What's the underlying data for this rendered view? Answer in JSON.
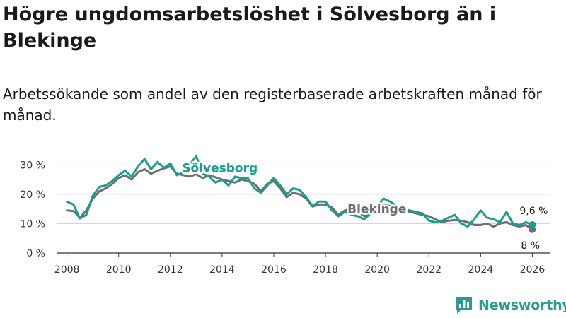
{
  "header": {
    "title": "Högre ungdomsarbetslöshet i Sölvesborg än i Blekinge",
    "subtitle": "Arbetssökande som andel av den registerbaserade arbetskraften månad för månad."
  },
  "brand": {
    "name": "Newsworthy"
  },
  "chart_data": {
    "type": "line",
    "title": "Högre ungdomsarbetslöshet i Sölvesborg än i Blekinge",
    "subtitle": "Arbetssökande som andel av den registerbaserade arbetskraften månad för månad.",
    "xlabel": "",
    "ylabel": "",
    "xlim": [
      2007.6,
      2026.7
    ],
    "ylim": [
      0,
      32
    ],
    "x_ticks": [
      2008,
      2010,
      2012,
      2014,
      2016,
      2018,
      2020,
      2022,
      2024,
      2026
    ],
    "x_tick_labels": [
      "2008",
      "2010",
      "2012",
      "2014",
      "2016",
      "2018",
      "2020",
      "2022",
      "2024",
      "2026"
    ],
    "y_ticks": [
      0,
      10,
      20,
      30
    ],
    "y_tick_labels": [
      "0 %",
      "10 %",
      "20 %",
      "30 %"
    ],
    "grid": true,
    "series": [
      {
        "name": "Blekinge",
        "color": "#6f6f73",
        "label": "Blekinge",
        "end_label": "8 %",
        "x": [
          2008.0,
          2008.25,
          2008.5,
          2008.75,
          2009.0,
          2009.25,
          2009.5,
          2009.75,
          2010.0,
          2010.25,
          2010.5,
          2010.75,
          2011.0,
          2011.25,
          2011.5,
          2011.75,
          2012.0,
          2012.25,
          2012.5,
          2012.75,
          2013.0,
          2013.25,
          2013.5,
          2013.75,
          2014.0,
          2014.25,
          2014.5,
          2014.75,
          2015.0,
          2015.25,
          2015.5,
          2015.75,
          2016.0,
          2016.25,
          2016.5,
          2016.75,
          2017.0,
          2017.25,
          2017.5,
          2017.75,
          2018.0,
          2018.25,
          2018.5,
          2018.75,
          2019.0,
          2019.25,
          2019.5,
          2019.75,
          2020.0,
          2020.25,
          2020.5,
          2020.75,
          2021.0,
          2021.25,
          2021.5,
          2021.75,
          2022.0,
          2022.25,
          2022.5,
          2022.75,
          2023.0,
          2023.25,
          2023.5,
          2023.75,
          2024.0,
          2024.25,
          2024.5,
          2024.75,
          2025.0,
          2025.25,
          2025.5,
          2025.75,
          2026.0
        ],
        "y": [
          14.5,
          14.3,
          12.0,
          14.5,
          18.5,
          21.0,
          22.0,
          23.5,
          25.5,
          26.5,
          25.0,
          27.5,
          28.5,
          27.0,
          28.0,
          28.8,
          29.5,
          27.0,
          26.5,
          26.0,
          26.8,
          25.5,
          26.5,
          25.8,
          25.0,
          24.5,
          24.0,
          25.0,
          24.5,
          23.5,
          21.0,
          23.5,
          24.5,
          22.0,
          19.0,
          20.5,
          20.0,
          18.5,
          15.8,
          16.5,
          16.5,
          15.5,
          13.0,
          14.5,
          15.0,
          14.0,
          12.5,
          13.5,
          15.0,
          16.5,
          16.0,
          15.5,
          15.0,
          14.0,
          13.5,
          13.0,
          12.5,
          11.5,
          10.5,
          11.0,
          11.2,
          11.0,
          10.5,
          9.5,
          9.5,
          10.0,
          9.0,
          10.0,
          10.5,
          9.5,
          9.0,
          9.5,
          8.0
        ]
      },
      {
        "name": "Sölvesborg",
        "color": "#1a9e8f",
        "label": "Sölvesborg",
        "end_label": "9,6 %",
        "x": [
          2008.0,
          2008.25,
          2008.5,
          2008.75,
          2009.0,
          2009.25,
          2009.5,
          2009.75,
          2010.0,
          2010.25,
          2010.5,
          2010.75,
          2011.0,
          2011.25,
          2011.5,
          2011.75,
          2012.0,
          2012.25,
          2012.5,
          2012.75,
          2013.0,
          2013.25,
          2013.5,
          2013.75,
          2014.0,
          2014.25,
          2014.5,
          2014.75,
          2015.0,
          2015.25,
          2015.5,
          2015.75,
          2016.0,
          2016.25,
          2016.5,
          2016.75,
          2017.0,
          2017.25,
          2017.5,
          2017.75,
          2018.0,
          2018.25,
          2018.5,
          2018.75,
          2019.0,
          2019.25,
          2019.5,
          2019.75,
          2020.0,
          2020.25,
          2020.5,
          2020.75,
          2021.0,
          2021.25,
          2021.5,
          2021.75,
          2022.0,
          2022.25,
          2022.5,
          2022.75,
          2023.0,
          2023.25,
          2023.5,
          2023.75,
          2024.0,
          2024.25,
          2024.5,
          2024.75,
          2025.0,
          2025.25,
          2025.5,
          2025.75,
          2026.0
        ],
        "y": [
          17.5,
          16.5,
          11.8,
          13.0,
          19.5,
          22.5,
          23.0,
          24.5,
          26.5,
          28.0,
          26.0,
          29.5,
          32.0,
          28.5,
          31.0,
          29.0,
          30.5,
          26.5,
          27.5,
          30.0,
          33.0,
          27.0,
          26.0,
          24.0,
          25.0,
          23.0,
          26.0,
          25.5,
          25.5,
          22.0,
          20.5,
          23.0,
          25.5,
          23.0,
          20.0,
          22.0,
          21.5,
          19.0,
          16.0,
          17.5,
          17.5,
          14.5,
          12.5,
          14.0,
          13.0,
          12.5,
          11.5,
          13.5,
          16.0,
          18.5,
          17.5,
          16.0,
          15.0,
          14.5,
          14.0,
          13.5,
          11.0,
          10.5,
          11.0,
          12.0,
          13.0,
          10.0,
          9.0,
          11.5,
          14.5,
          12.0,
          11.5,
          10.5,
          14.0,
          10.0,
          9.5,
          10.5,
          9.6
        ]
      }
    ]
  }
}
